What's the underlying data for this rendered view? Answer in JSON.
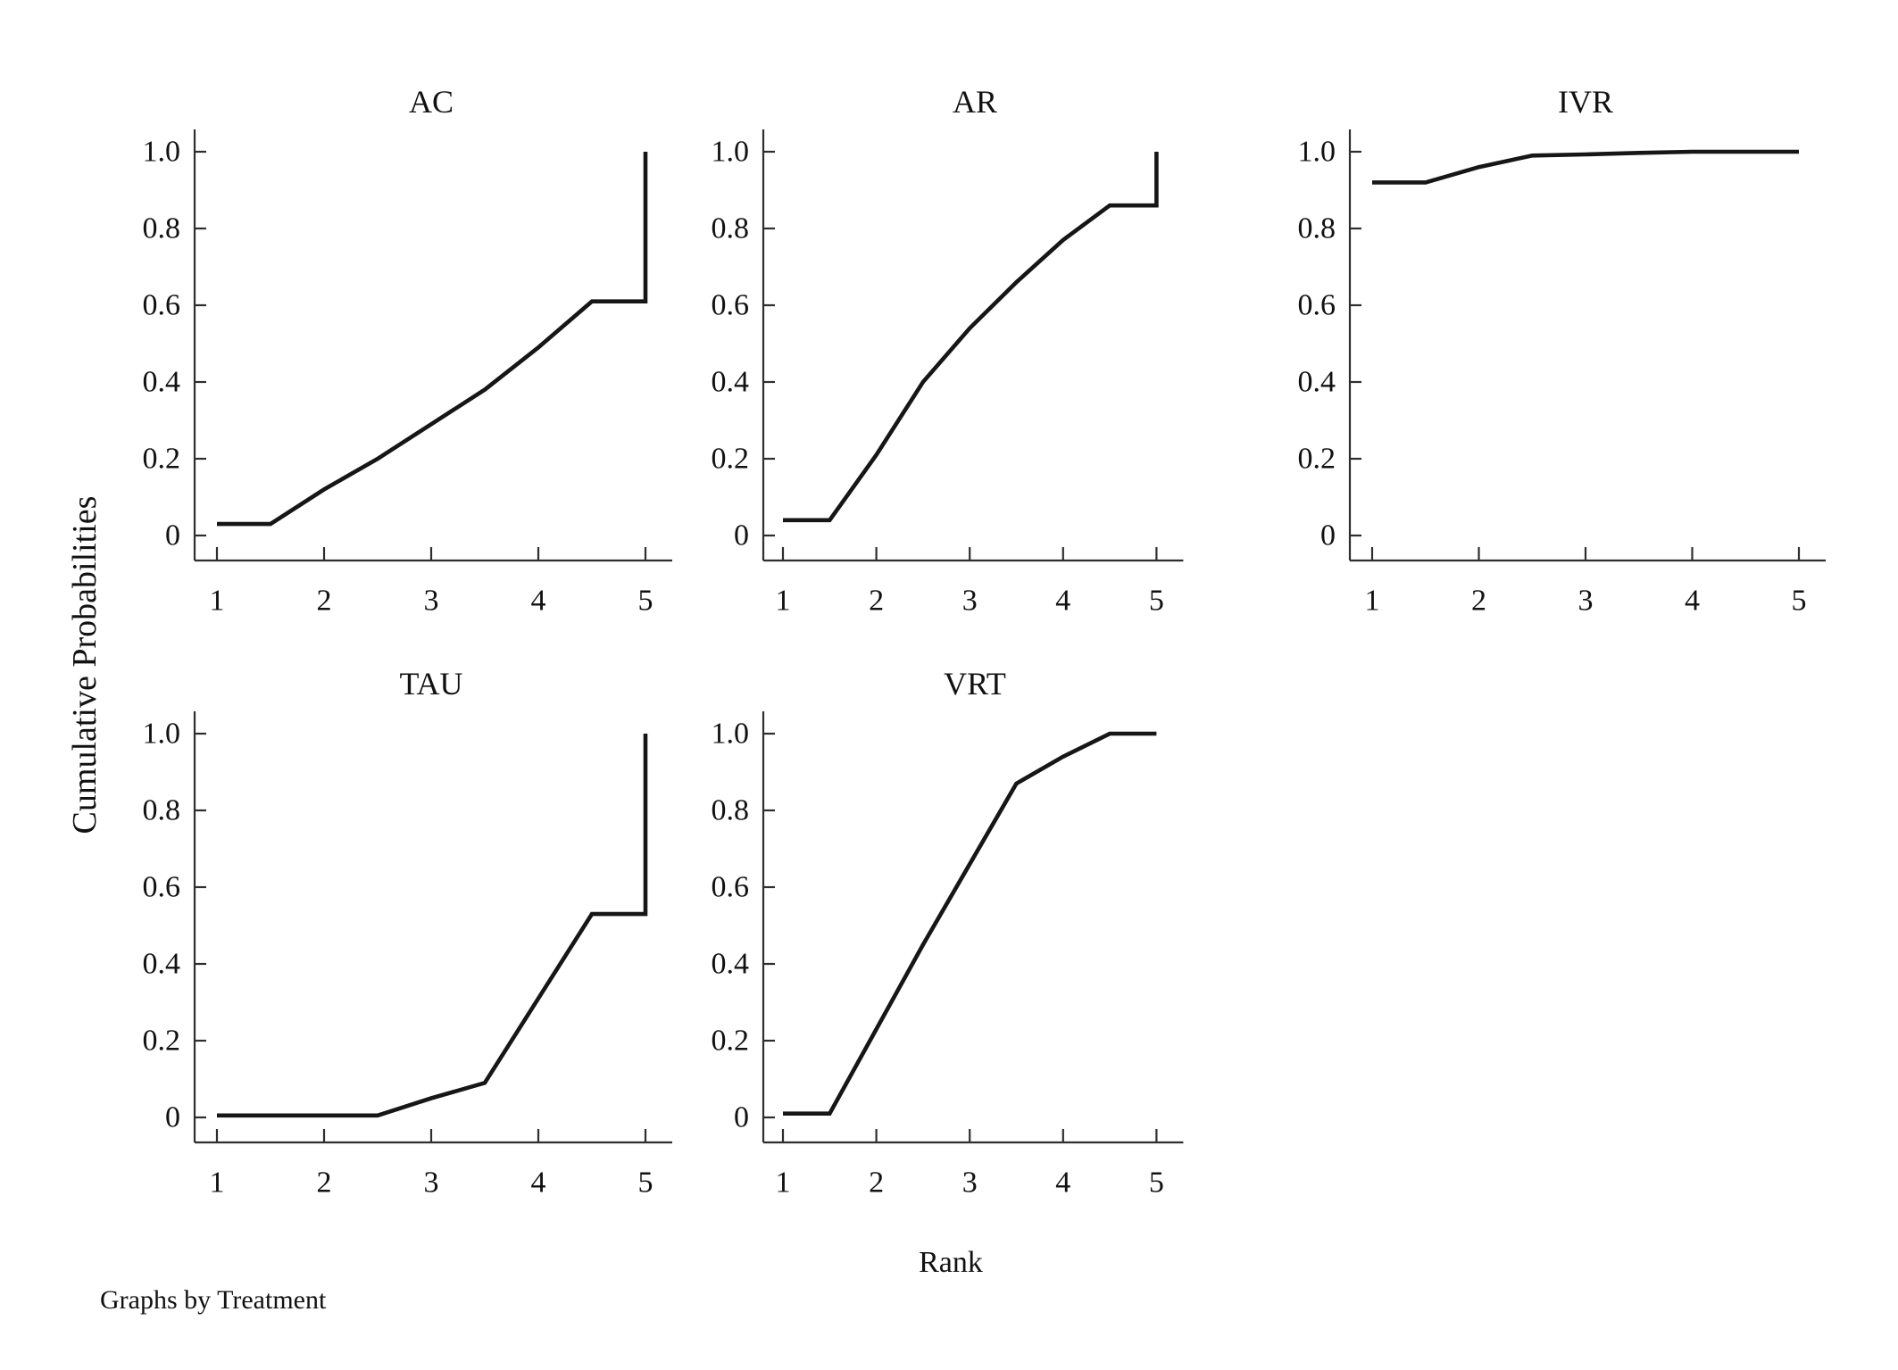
{
  "figure": {
    "ylabel": "Cumulative Probabilities",
    "xlabel": "Rank",
    "footnote": "Graphs by Treatment"
  },
  "chart_data": {
    "type": "line",
    "layout": "small multiples, 2 rows x 3 columns (bottom-right cell empty), legend off, grid off",
    "title": "",
    "xlabel": "Rank",
    "ylabel": "Cumulative Probabilities",
    "note": "Graphs by Treatment",
    "xlim": [
      1,
      5
    ],
    "ylim": [
      0,
      1
    ],
    "x_ticks": [
      "1",
      "2",
      "3",
      "4",
      "5"
    ],
    "y_ticks": [
      "0",
      "0.2",
      "0.4",
      "0.6",
      "0.8",
      "1.0"
    ],
    "line_color": "#161616",
    "axis_color": "#2e2e2e",
    "panels": [
      {
        "title": "AC",
        "x": [
          1,
          1.5,
          2,
          2.5,
          3,
          3.5,
          4,
          4.5,
          5,
          5
        ],
        "y": [
          0.03,
          0.03,
          0.12,
          0.2,
          0.29,
          0.38,
          0.49,
          0.61,
          0.61,
          1.0
        ]
      },
      {
        "title": "AR",
        "x": [
          1,
          1.5,
          2,
          2.5,
          3,
          3.5,
          4,
          4.5,
          5,
          5
        ],
        "y": [
          0.04,
          0.04,
          0.21,
          0.4,
          0.54,
          0.66,
          0.77,
          0.86,
          0.86,
          1.0
        ]
      },
      {
        "title": "IVR",
        "x": [
          1,
          1.5,
          2,
          2.5,
          3,
          3.5,
          4,
          4.5,
          5
        ],
        "y": [
          0.92,
          0.92,
          0.96,
          0.99,
          0.993,
          0.997,
          1.0,
          1.0,
          1.0
        ]
      },
      {
        "title": "TAU",
        "x": [
          1,
          1.5,
          2,
          2.5,
          3,
          3.5,
          4,
          4.5,
          5,
          5
        ],
        "y": [
          0.005,
          0.005,
          0.005,
          0.005,
          0.05,
          0.09,
          0.31,
          0.53,
          0.53,
          1.0
        ]
      },
      {
        "title": "VRT",
        "x": [
          1,
          1.5,
          2,
          2.5,
          3,
          3.5,
          4,
          4.5,
          5
        ],
        "y": [
          0.01,
          0.01,
          0.23,
          0.45,
          0.66,
          0.87,
          0.94,
          1.0,
          1.0
        ]
      }
    ]
  }
}
